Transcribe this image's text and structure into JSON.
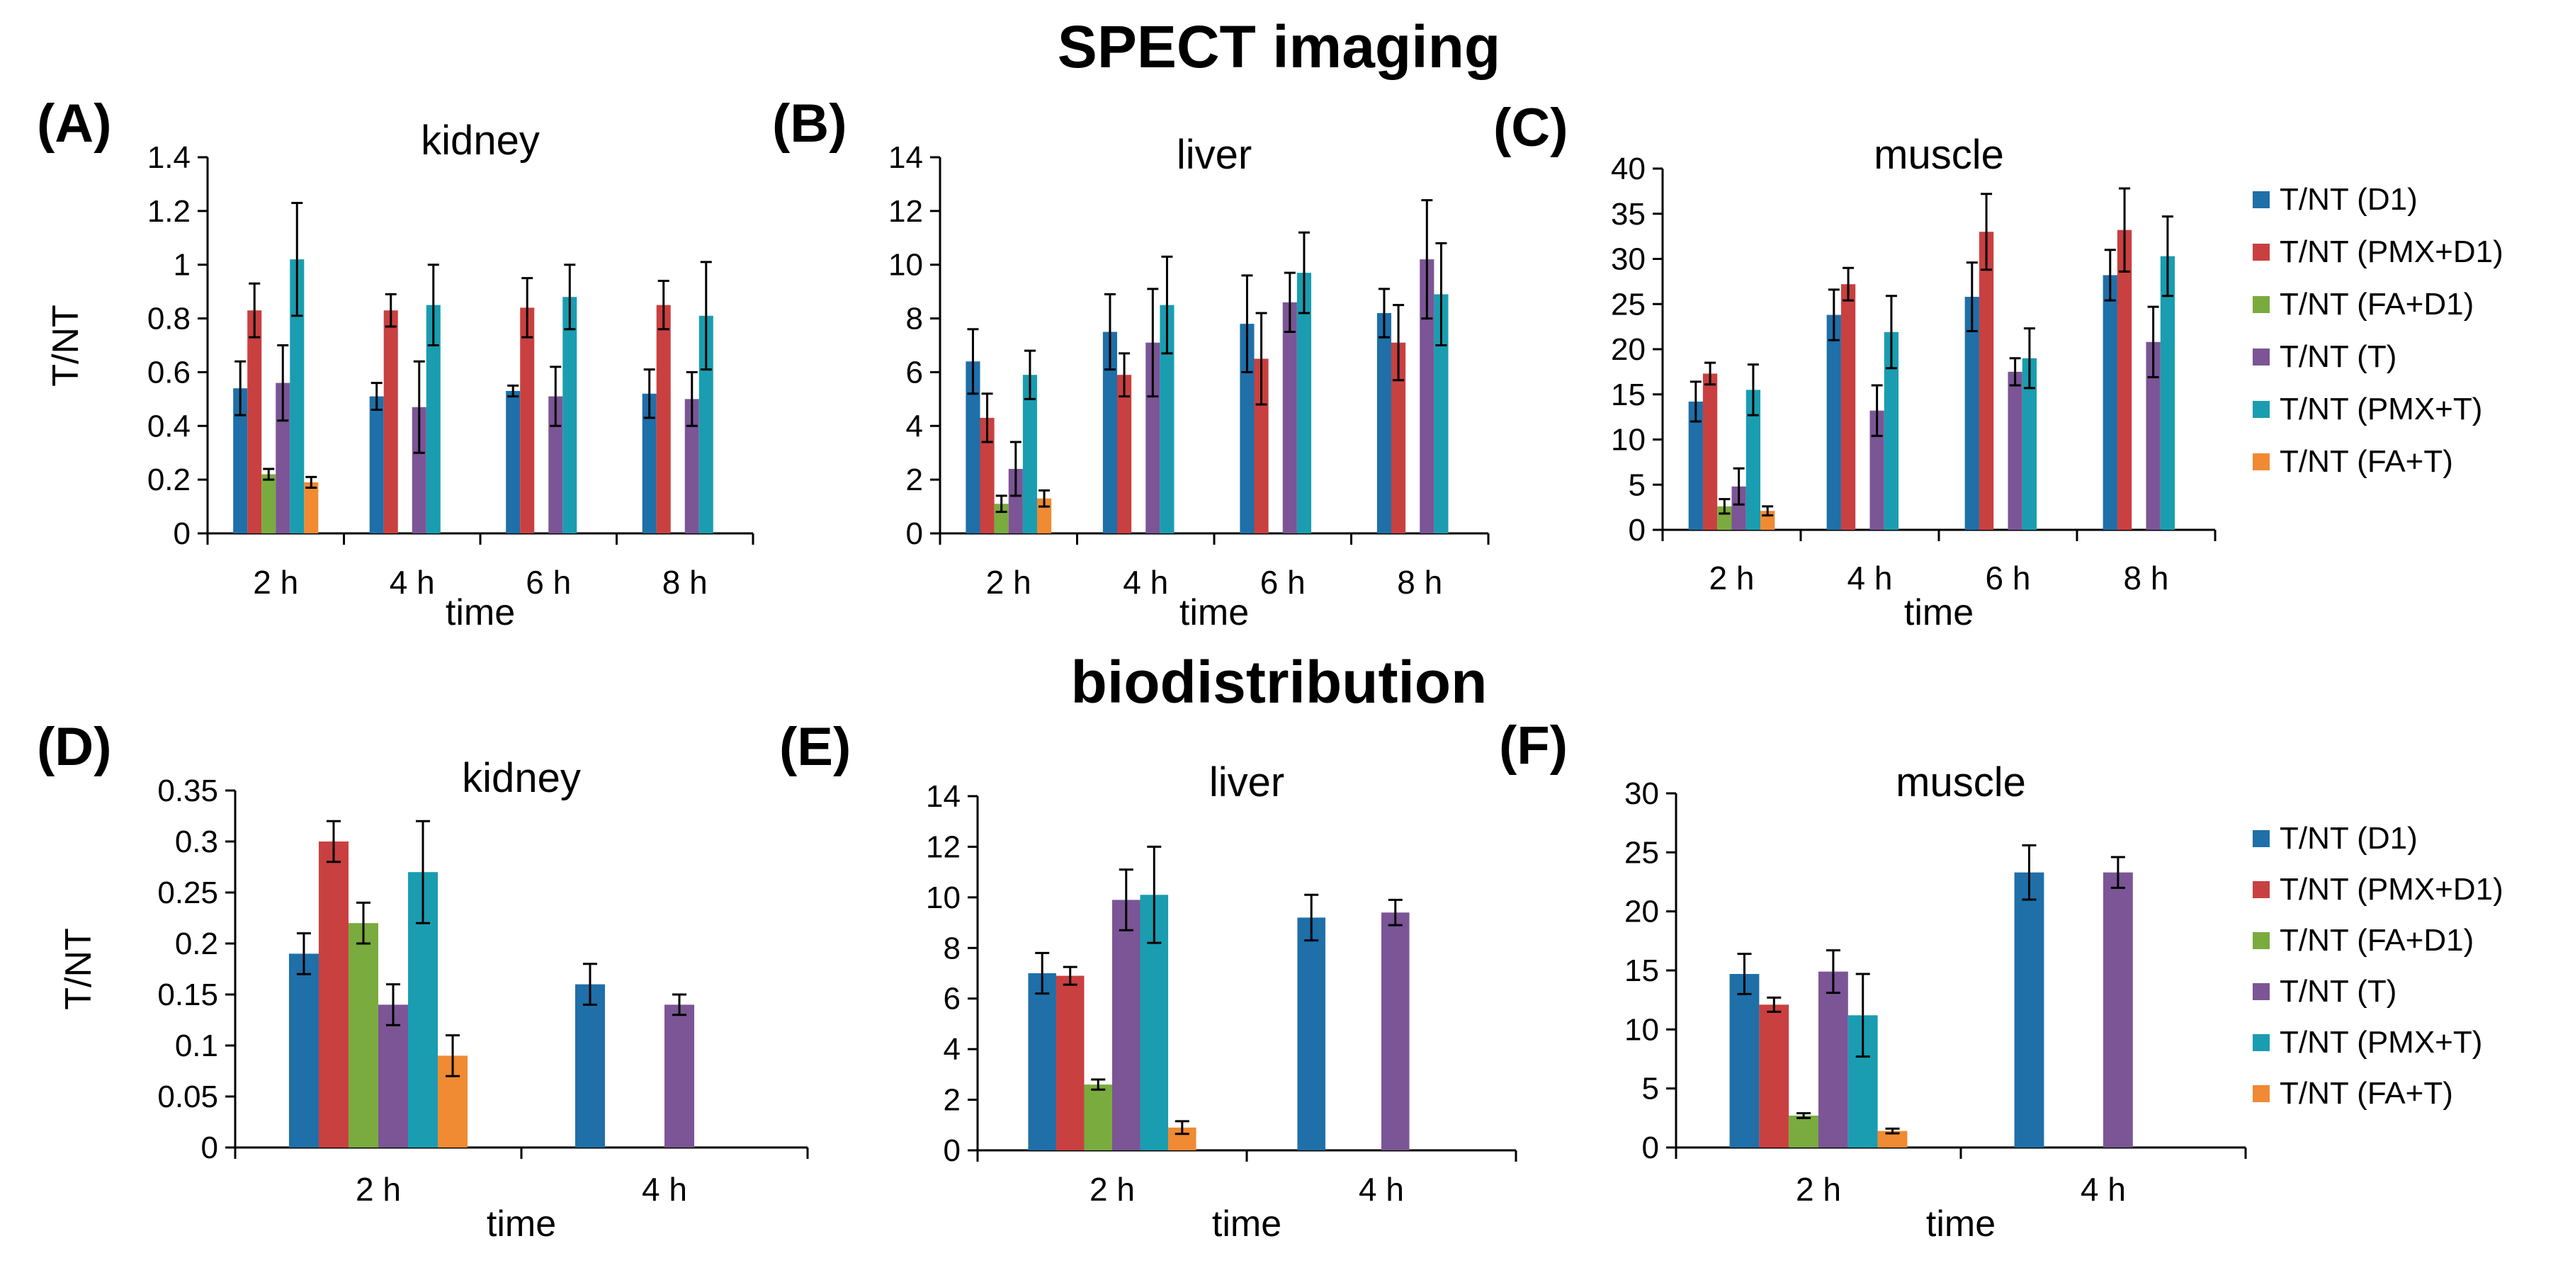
{
  "figure": {
    "section_titles": {
      "top": "SPECT imaging",
      "bottom": "biodistribution"
    }
  },
  "legend_colors": [
    "#1f6fa8",
    "#c94040",
    "#7aab3f",
    "#7b5595",
    "#1a9db0",
    "#f08a33"
  ],
  "chart_data": [
    {
      "id": "A",
      "panel_label": "(A)",
      "type": "bar",
      "title": "kidney",
      "xlabel": "time",
      "ylabel": "T/NT",
      "categories": [
        "2 h",
        "4 h",
        "6 h",
        "8 h"
      ],
      "ylim": [
        0,
        1.4
      ],
      "yticks": [
        0,
        0.2,
        0.4,
        0.6,
        0.8,
        1,
        1.2,
        1.4
      ],
      "ytick_labels": [
        "0",
        "0.2",
        "0.4",
        "0.6",
        "0.8",
        "1",
        "1.2",
        "1.4"
      ],
      "series": [
        {
          "name": "T/NT (D1)",
          "values": [
            0.54,
            0.51,
            0.53,
            0.52
          ],
          "errors": [
            0.1,
            0.05,
            0.02,
            0.09
          ]
        },
        {
          "name": "T/NT (PMX+D1)",
          "values": [
            0.83,
            0.83,
            0.84,
            0.85
          ],
          "errors": [
            0.1,
            0.06,
            0.11,
            0.09
          ]
        },
        {
          "name": "T/NT (FA+D1)",
          "values": [
            0.22,
            null,
            null,
            null
          ],
          "errors": [
            0.02,
            null,
            null,
            null
          ]
        },
        {
          "name": "T/NT (T)",
          "values": [
            0.56,
            0.47,
            0.51,
            0.5
          ],
          "errors": [
            0.14,
            0.17,
            0.11,
            0.1
          ]
        },
        {
          "name": "T/NT (PMX+T)",
          "values": [
            1.02,
            0.85,
            0.88,
            0.81
          ],
          "errors": [
            0.21,
            0.15,
            0.12,
            0.2
          ]
        },
        {
          "name": "T/NT (FA+T)",
          "values": [
            0.19,
            null,
            null,
            null
          ],
          "errors": [
            0.02,
            null,
            null,
            null
          ]
        }
      ]
    },
    {
      "id": "B",
      "panel_label": "(B)",
      "type": "bar",
      "title": "liver",
      "xlabel": "time",
      "ylabel": "",
      "categories": [
        "2 h",
        "4 h",
        "6 h",
        "8 h"
      ],
      "ylim": [
        0,
        14
      ],
      "yticks": [
        0,
        2,
        4,
        6,
        8,
        10,
        12,
        14
      ],
      "ytick_labels": [
        "0",
        "2",
        "4",
        "6",
        "8",
        "10",
        "12",
        "14"
      ],
      "series": [
        {
          "name": "T/NT (D1)",
          "values": [
            6.4,
            7.5,
            7.8,
            8.2
          ],
          "errors": [
            1.2,
            1.4,
            1.8,
            0.9
          ]
        },
        {
          "name": "T/NT (PMX+D1)",
          "values": [
            4.3,
            5.9,
            6.5,
            7.1
          ],
          "errors": [
            0.9,
            0.8,
            1.7,
            1.4
          ]
        },
        {
          "name": "T/NT (FA+D1)",
          "values": [
            1.1,
            null,
            null,
            null
          ],
          "errors": [
            0.3,
            null,
            null,
            null
          ]
        },
        {
          "name": "T/NT (T)",
          "values": [
            2.4,
            7.1,
            8.6,
            10.2
          ],
          "errors": [
            1.0,
            2.0,
            1.1,
            2.2
          ]
        },
        {
          "name": "T/NT (PMX+T)",
          "values": [
            5.9,
            8.5,
            9.7,
            8.9
          ],
          "errors": [
            0.9,
            1.8,
            1.5,
            1.9
          ]
        },
        {
          "name": "T/NT (FA+T)",
          "values": [
            1.3,
            null,
            null,
            null
          ],
          "errors": [
            0.3,
            null,
            null,
            null
          ]
        }
      ]
    },
    {
      "id": "C",
      "panel_label": "(C)",
      "type": "bar",
      "title": "muscle",
      "xlabel": "time",
      "ylabel": "",
      "categories": [
        "2 h",
        "4 h",
        "6 h",
        "8 h"
      ],
      "ylim": [
        0,
        40
      ],
      "yticks": [
        0,
        5,
        10,
        15,
        20,
        25,
        30,
        35,
        40
      ],
      "ytick_labels": [
        "0",
        "5",
        "10",
        "15",
        "20",
        "25",
        "30",
        "35",
        "40"
      ],
      "series": [
        {
          "name": "T/NT (D1)",
          "values": [
            14.2,
            23.8,
            25.8,
            28.2
          ],
          "errors": [
            2.2,
            2.8,
            3.8,
            2.8
          ]
        },
        {
          "name": "T/NT (PMX+D1)",
          "values": [
            17.3,
            27.2,
            33.0,
            33.2
          ],
          "errors": [
            1.2,
            1.8,
            4.2,
            4.6
          ]
        },
        {
          "name": "T/NT (FA+D1)",
          "values": [
            2.6,
            null,
            null,
            null
          ],
          "errors": [
            0.8,
            null,
            null,
            null
          ]
        },
        {
          "name": "T/NT (T)",
          "values": [
            4.8,
            13.2,
            17.5,
            20.8
          ],
          "errors": [
            2.0,
            2.8,
            1.5,
            3.9
          ]
        },
        {
          "name": "T/NT (PMX+T)",
          "values": [
            15.5,
            21.9,
            19.0,
            30.3
          ],
          "errors": [
            2.8,
            4.0,
            3.3,
            4.4
          ]
        },
        {
          "name": "T/NT (FA+T)",
          "values": [
            2.1,
            null,
            null,
            null
          ],
          "errors": [
            0.5,
            null,
            null,
            null
          ]
        }
      ]
    },
    {
      "id": "D",
      "panel_label": "(D)",
      "type": "bar",
      "title": "kidney",
      "xlabel": "time",
      "ylabel": "T/NT",
      "categories": [
        "2 h",
        "4 h"
      ],
      "ylim": [
        0,
        0.35
      ],
      "yticks": [
        0,
        0.05,
        0.1,
        0.15,
        0.2,
        0.25,
        0.3,
        0.35
      ],
      "ytick_labels": [
        "0",
        "0.05",
        "0.1",
        "0.15",
        "0.2",
        "0.25",
        "0.3",
        "0.35"
      ],
      "series": [
        {
          "name": "T/NT (D1)",
          "values": [
            0.19,
            0.16
          ],
          "errors": [
            0.02,
            0.02
          ]
        },
        {
          "name": "T/NT (PMX+D1)",
          "values": [
            0.3,
            null
          ],
          "errors": [
            0.02,
            null
          ]
        },
        {
          "name": "T/NT (FA+D1)",
          "values": [
            0.22,
            null
          ],
          "errors": [
            0.02,
            null
          ]
        },
        {
          "name": "T/NT (T)",
          "values": [
            0.14,
            0.14
          ],
          "errors": [
            0.02,
            0.01
          ]
        },
        {
          "name": "T/NT (PMX+T)",
          "values": [
            0.27,
            null
          ],
          "errors": [
            0.05,
            null
          ]
        },
        {
          "name": "T/NT (FA+T)",
          "values": [
            0.09,
            null
          ],
          "errors": [
            0.02,
            null
          ]
        }
      ]
    },
    {
      "id": "E",
      "panel_label": "(E)",
      "type": "bar",
      "title": "liver",
      "xlabel": "time",
      "ylabel": "",
      "categories": [
        "2 h",
        "4 h"
      ],
      "ylim": [
        0,
        14
      ],
      "yticks": [
        0,
        2,
        4,
        6,
        8,
        10,
        12,
        14
      ],
      "ytick_labels": [
        "0",
        "2",
        "4",
        "6",
        "8",
        "10",
        "12",
        "14"
      ],
      "series": [
        {
          "name": "T/NT (D1)",
          "values": [
            7.0,
            9.2
          ],
          "errors": [
            0.8,
            0.9
          ]
        },
        {
          "name": "T/NT (PMX+D1)",
          "values": [
            6.9,
            null
          ],
          "errors": [
            0.35,
            null
          ]
        },
        {
          "name": "T/NT (FA+D1)",
          "values": [
            2.6,
            null
          ],
          "errors": [
            0.2,
            null
          ]
        },
        {
          "name": "T/NT (T)",
          "values": [
            9.9,
            9.4
          ],
          "errors": [
            1.2,
            0.5
          ]
        },
        {
          "name": "T/NT (PMX+T)",
          "values": [
            10.1,
            null
          ],
          "errors": [
            1.9,
            null
          ]
        },
        {
          "name": "T/NT (FA+T)",
          "values": [
            0.9,
            null
          ],
          "errors": [
            0.25,
            null
          ]
        }
      ]
    },
    {
      "id": "F",
      "panel_label": "(F)",
      "type": "bar",
      "title": "muscle",
      "xlabel": "time",
      "ylabel": "",
      "categories": [
        "2 h",
        "4 h"
      ],
      "ylim": [
        0,
        30
      ],
      "yticks": [
        0,
        5,
        10,
        15,
        20,
        25,
        30
      ],
      "ytick_labels": [
        "0",
        "5",
        "10",
        "15",
        "20",
        "25",
        "30"
      ],
      "series": [
        {
          "name": "T/NT (D1)",
          "values": [
            14.7,
            23.3
          ],
          "errors": [
            1.7,
            2.3
          ]
        },
        {
          "name": "T/NT (PMX+D1)",
          "values": [
            12.1,
            null
          ],
          "errors": [
            0.6,
            null
          ]
        },
        {
          "name": "T/NT (FA+D1)",
          "values": [
            2.7,
            null
          ],
          "errors": [
            0.2,
            null
          ]
        },
        {
          "name": "T/NT (T)",
          "values": [
            14.9,
            23.3
          ],
          "errors": [
            1.8,
            1.3
          ]
        },
        {
          "name": "T/NT (PMX+T)",
          "values": [
            11.2,
            null
          ],
          "errors": [
            3.5,
            null
          ]
        },
        {
          "name": "T/NT (FA+T)",
          "values": [
            1.4,
            null
          ],
          "errors": [
            0.2,
            null
          ]
        }
      ]
    }
  ],
  "legends": [
    {
      "entries": [
        "T/NT (D1)",
        "T/NT (PMX+D1)",
        "T/NT (FA+D1)",
        "T/NT (T)",
        "T/NT (PMX+T)",
        "T/NT (FA+T)"
      ]
    },
    {
      "entries": [
        "T/NT (D1)",
        "T/NT (PMX+D1)",
        "T/NT (FA+D1)",
        "T/NT (T)",
        "T/NT (PMX+T)",
        "T/NT (FA+T)"
      ]
    }
  ]
}
